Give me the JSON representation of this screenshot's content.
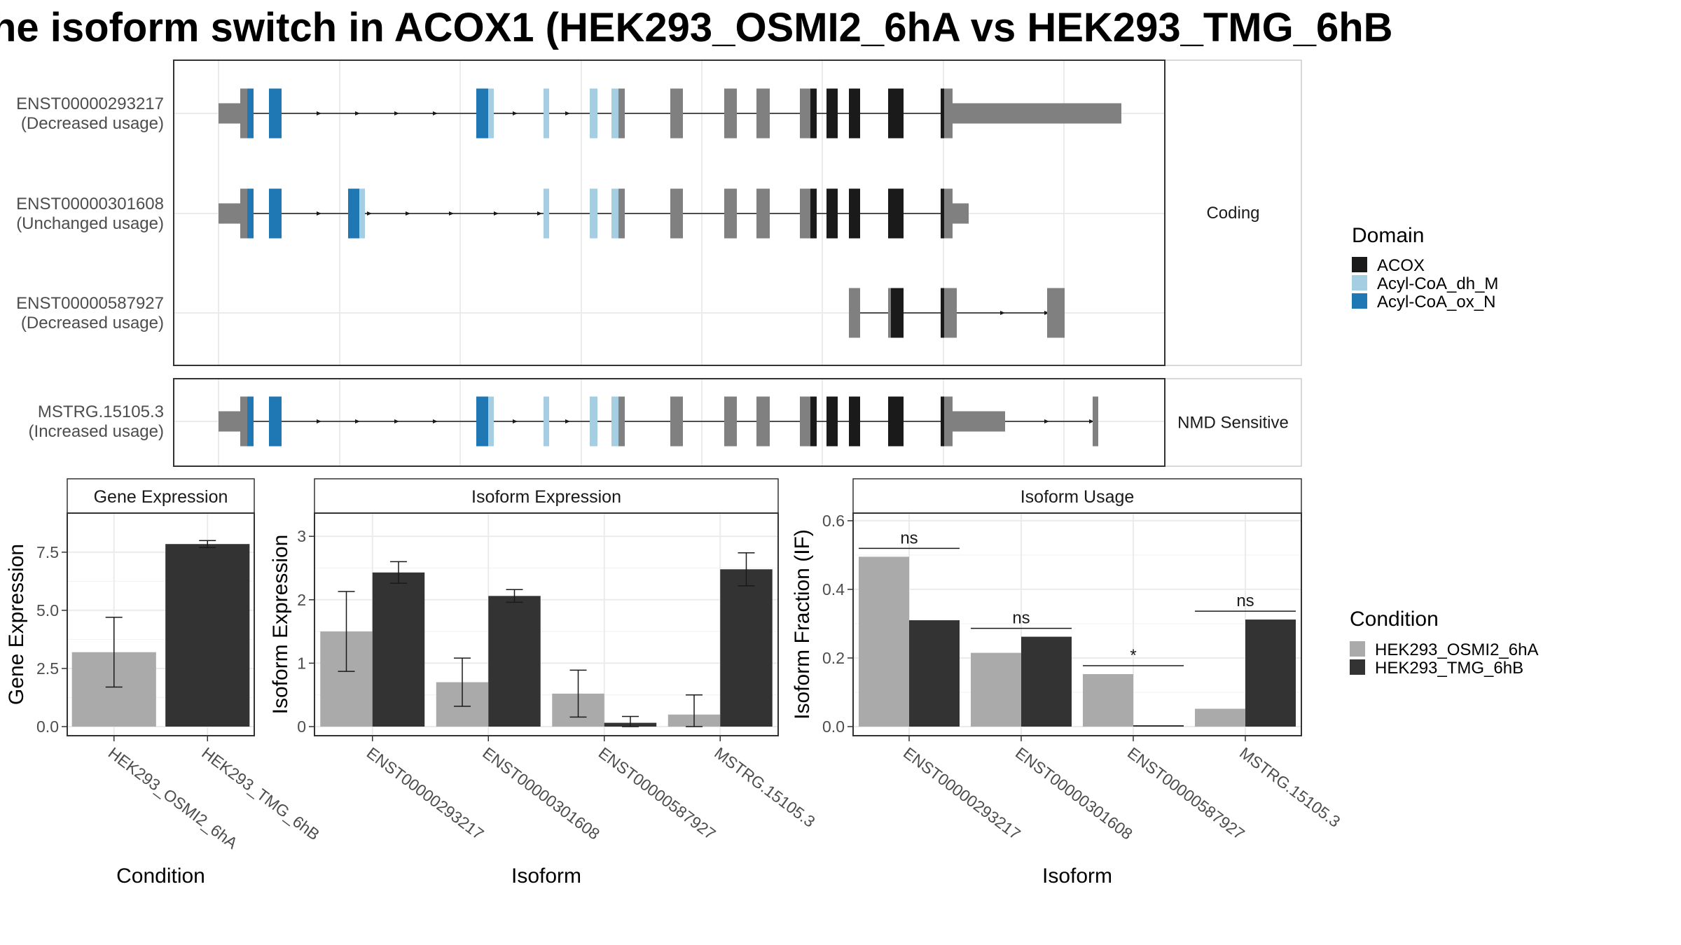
{
  "title": "he isoform switch in ACOX1 (HEK293_OSMI2_6hA vs HEK293_TMG_6hB",
  "colors": {
    "ACOX": "#1a1a1a",
    "Acyl-CoA_dh_M": "#a6cee3",
    "Acyl-CoA_ox_N": "#1f78b4",
    "none": "#808080",
    "HEK293_OSMI2_6hA": "#aaaaaa",
    "HEK293_TMG_6hB": "#333333"
  },
  "domain_legend": {
    "title": "Domain",
    "items": [
      {
        "label": "ACOX",
        "color": "#1a1a1a"
      },
      {
        "label": "Acyl-CoA_dh_M",
        "color": "#a6cee3"
      },
      {
        "label": "Acyl-CoA_ox_N",
        "color": "#1f78b4"
      }
    ]
  },
  "condition_legend": {
    "title": "Condition",
    "items": [
      {
        "label": "HEK293_OSMI2_6hA",
        "color": "#aaaaaa"
      },
      {
        "label": "HEK293_TMG_6hB",
        "color": "#333333"
      }
    ]
  },
  "chart_data": [
    {
      "type": "gene-structure",
      "coding_panel": {
        "strip": "Coding",
        "isoforms": [
          {
            "id": "ENST00000293217",
            "usage": "(Decreased usage)"
          },
          {
            "id": "ENST00000301608",
            "usage": "(Unchanged usage)"
          },
          {
            "id": "ENST00000587927",
            "usage": "(Decreased usage)"
          }
        ]
      },
      "nmd_panel": {
        "strip": "NMD Sensitive",
        "isoforms": [
          {
            "id": "MSTRG.15105.3",
            "usage": "(Increased usage)"
          }
        ]
      }
    },
    {
      "type": "bar",
      "title": "Gene Expression",
      "xlabel": "Condition",
      "ylabel": "Gene Expression",
      "ylim": [
        0,
        9.0
      ],
      "yticks": [
        0.0,
        2.5,
        5.0,
        7.5
      ],
      "ytick_labels": [
        "0.0",
        "2.5",
        "5.0",
        "7.5"
      ],
      "categories": [
        "HEK293_OSMI2_6hA",
        "HEK293_TMG_6hB"
      ],
      "values": [
        3.2,
        7.85
      ],
      "errors": [
        [
          1.7,
          4.7
        ],
        [
          7.7,
          8.0
        ]
      ]
    },
    {
      "type": "bar",
      "title": "Isoform Expression",
      "xlabel": "Isoform",
      "ylabel": "Isoform Expression",
      "ylim": [
        0,
        3.3
      ],
      "yticks": [
        0,
        1,
        2,
        3
      ],
      "ytick_labels": [
        "0",
        "1",
        "2",
        "3"
      ],
      "categories": [
        "ENST00000293217",
        "ENST00000301608",
        "ENST00000587927",
        "MSTRG.15105.3"
      ],
      "series": [
        {
          "name": "HEK293_OSMI2_6hA",
          "values": [
            1.5,
            0.7,
            0.52,
            0.19
          ],
          "errors": [
            [
              0.87,
              2.13
            ],
            [
              0.32,
              1.08
            ],
            [
              0.15,
              0.89
            ],
            [
              0.0,
              0.5
            ]
          ]
        },
        {
          "name": "HEK293_TMG_6hB",
          "values": [
            2.43,
            2.06,
            0.06,
            2.48
          ],
          "errors": [
            [
              2.26,
              2.6
            ],
            [
              1.96,
              2.16
            ],
            [
              0.0,
              0.16
            ],
            [
              2.22,
              2.74
            ]
          ]
        }
      ]
    },
    {
      "type": "bar",
      "title": "Isoform Usage",
      "xlabel": "Isoform",
      "ylabel": "Isoform Fraction (IF)",
      "ylim": [
        0,
        0.61
      ],
      "yticks": [
        0.0,
        0.2,
        0.4,
        0.6
      ],
      "ytick_labels": [
        "0.0",
        "0.2",
        "0.4",
        "0.6"
      ],
      "categories": [
        "ENST00000293217",
        "ENST00000301608",
        "ENST00000587927",
        "MSTRG.15105.3"
      ],
      "series": [
        {
          "name": "HEK293_OSMI2_6hA",
          "values": [
            0.495,
            0.215,
            0.153,
            0.052
          ]
        },
        {
          "name": "HEK293_TMG_6hB",
          "values": [
            0.31,
            0.262,
            0.004,
            0.312
          ]
        }
      ],
      "significance": [
        "ns",
        "ns",
        "*",
        "ns"
      ]
    }
  ]
}
